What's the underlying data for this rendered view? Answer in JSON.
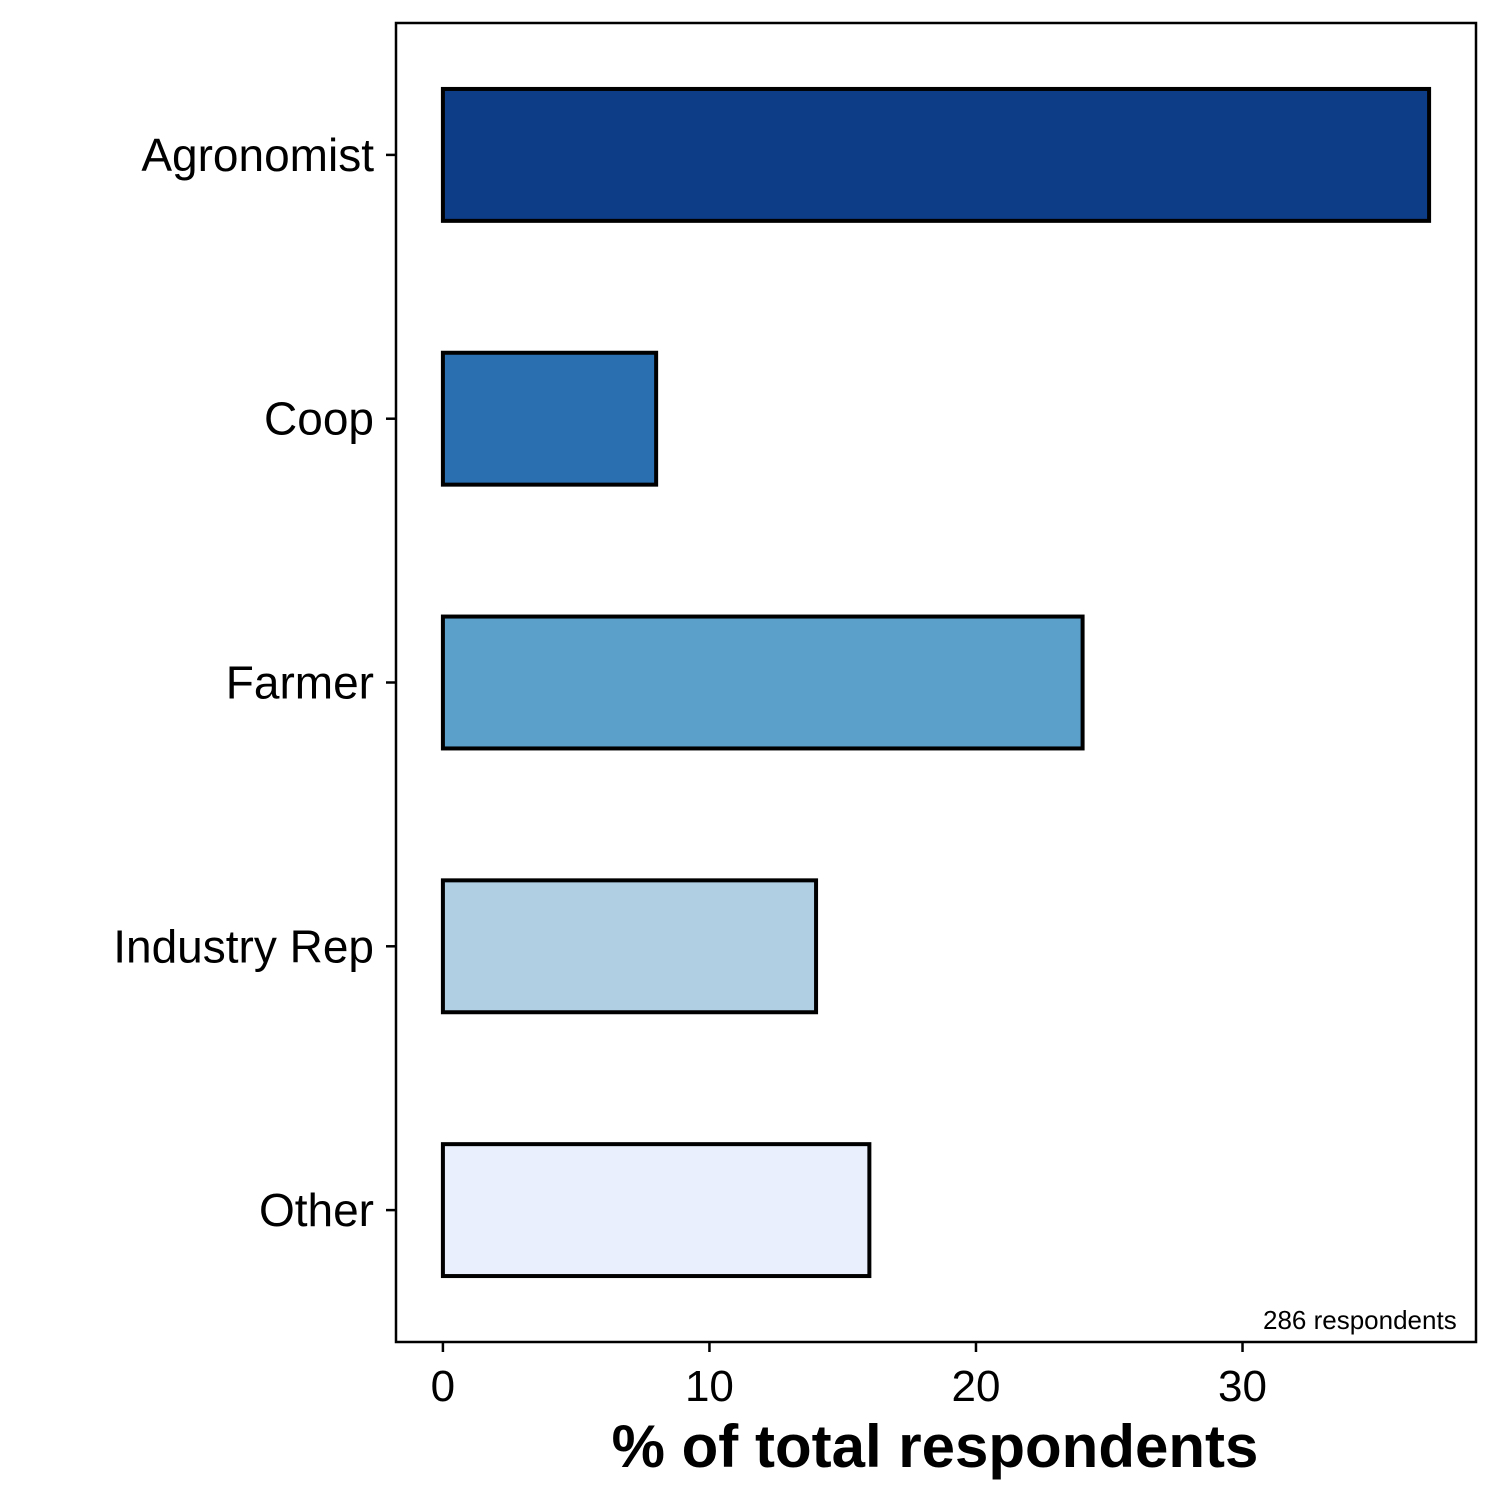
{
  "chart_data": {
    "type": "bar",
    "orientation": "horizontal",
    "categories": [
      "Agronomist",
      "Coop",
      "Farmer",
      "Industry Rep",
      "Other"
    ],
    "values": [
      37,
      8,
      24,
      14,
      16
    ],
    "colors": [
      "#0e3d88",
      "#2a6faf",
      "#5b9fcb",
      "#b0cfe3",
      "#e9effc"
    ],
    "x_ticks": [
      0,
      10,
      20,
      30
    ],
    "xlim": [
      -1.76,
      38.76
    ],
    "xlabel": "% of total respondents",
    "ylabel": "",
    "annotation": "286 respondents",
    "grid": false,
    "legend": "none"
  }
}
